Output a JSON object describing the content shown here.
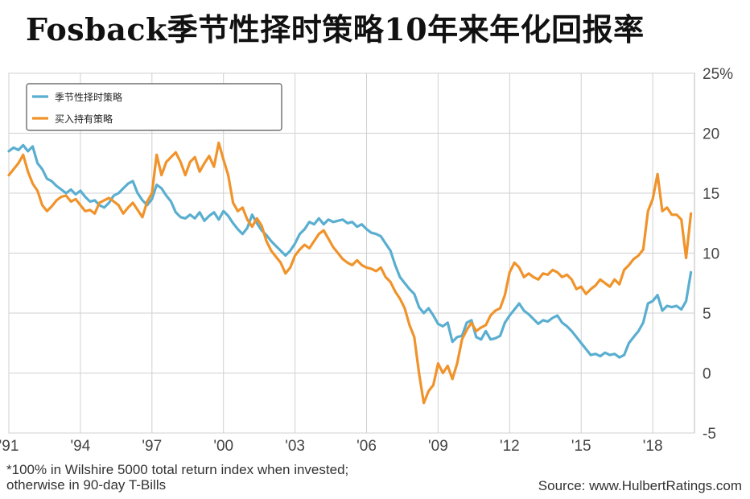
{
  "title": "Fosback季节性择时策略10年来年化回报率",
  "footnote": {
    "line1": "*100% in Wilshire 5000 total return index when invested;",
    "line2": "otherwise in 90-day T-Bills"
  },
  "source": "Source: www.HulbertRatings.com",
  "colors": {
    "seasonal": "#5aaed0",
    "buyhold": "#f0932b",
    "grid": "#d0d0d0"
  },
  "chart_data": {
    "type": "line",
    "title": "Fosback季节性择时策略10年来年化回报率",
    "xlabel": "",
    "ylabel": "",
    "xlim": [
      1991.0,
      2019.75
    ],
    "ylim": [
      -5,
      25
    ],
    "grid": true,
    "legend_position": "top-left",
    "x_ticks": [
      {
        "value": 1991,
        "label": "'91"
      },
      {
        "value": 1994,
        "label": "'94"
      },
      {
        "value": 1997,
        "label": "'97"
      },
      {
        "value": 2000,
        "label": "'00"
      },
      {
        "value": 2003,
        "label": "'03"
      },
      {
        "value": 2006,
        "label": "'06"
      },
      {
        "value": 2009,
        "label": "'09"
      },
      {
        "value": 2012,
        "label": "'12"
      },
      {
        "value": 2015,
        "label": "'15"
      },
      {
        "value": 2018,
        "label": "'18"
      }
    ],
    "y_ticks": [
      {
        "value": 25,
        "label": "25%"
      },
      {
        "value": 20,
        "label": "20"
      },
      {
        "value": 15,
        "label": "15"
      },
      {
        "value": 10,
        "label": "10"
      },
      {
        "value": 5,
        "label": "5"
      },
      {
        "value": 0,
        "label": "0"
      },
      {
        "value": -5,
        "label": "-5"
      }
    ],
    "series": [
      {
        "name": "季节性择时策略",
        "color": "#5aaed0",
        "points": [
          [
            1991.0,
            18.5
          ],
          [
            1991.2,
            18.8
          ],
          [
            1991.4,
            18.6
          ],
          [
            1991.6,
            19.0
          ],
          [
            1991.8,
            18.5
          ],
          [
            1992.0,
            18.9
          ],
          [
            1992.2,
            17.5
          ],
          [
            1992.4,
            17.0
          ],
          [
            1992.6,
            16.2
          ],
          [
            1992.8,
            16.0
          ],
          [
            1993.0,
            15.6
          ],
          [
            1993.2,
            15.3
          ],
          [
            1993.4,
            15.0
          ],
          [
            1993.6,
            15.3
          ],
          [
            1993.8,
            14.9
          ],
          [
            1994.0,
            15.2
          ],
          [
            1994.2,
            14.7
          ],
          [
            1994.4,
            14.3
          ],
          [
            1994.6,
            14.4
          ],
          [
            1994.8,
            14.0
          ],
          [
            1995.0,
            13.8
          ],
          [
            1995.2,
            14.2
          ],
          [
            1995.4,
            14.8
          ],
          [
            1995.6,
            15.0
          ],
          [
            1995.8,
            15.4
          ],
          [
            1996.0,
            15.8
          ],
          [
            1996.2,
            16.0
          ],
          [
            1996.4,
            15.0
          ],
          [
            1996.6,
            14.4
          ],
          [
            1996.8,
            14.0
          ],
          [
            1997.0,
            14.5
          ],
          [
            1997.2,
            15.7
          ],
          [
            1997.4,
            15.4
          ],
          [
            1997.6,
            14.8
          ],
          [
            1997.8,
            14.3
          ],
          [
            1998.0,
            13.4
          ],
          [
            1998.2,
            13.0
          ],
          [
            1998.4,
            12.9
          ],
          [
            1998.6,
            13.2
          ],
          [
            1998.8,
            12.9
          ],
          [
            1999.0,
            13.4
          ],
          [
            1999.2,
            12.7
          ],
          [
            1999.4,
            13.1
          ],
          [
            1999.6,
            13.4
          ],
          [
            1999.8,
            12.8
          ],
          [
            2000.0,
            13.5
          ],
          [
            2000.2,
            13.1
          ],
          [
            2000.4,
            12.5
          ],
          [
            2000.6,
            12.0
          ],
          [
            2000.8,
            11.6
          ],
          [
            2001.0,
            12.1
          ],
          [
            2001.2,
            13.2
          ],
          [
            2001.4,
            12.5
          ],
          [
            2001.6,
            11.9
          ],
          [
            2001.8,
            11.5
          ],
          [
            2002.0,
            11.0
          ],
          [
            2002.2,
            10.6
          ],
          [
            2002.4,
            10.2
          ],
          [
            2002.6,
            9.8
          ],
          [
            2002.8,
            10.2
          ],
          [
            2003.0,
            10.8
          ],
          [
            2003.2,
            11.6
          ],
          [
            2003.4,
            12.0
          ],
          [
            2003.6,
            12.6
          ],
          [
            2003.8,
            12.4
          ],
          [
            2004.0,
            12.9
          ],
          [
            2004.2,
            12.4
          ],
          [
            2004.4,
            12.8
          ],
          [
            2004.6,
            12.6
          ],
          [
            2004.8,
            12.7
          ],
          [
            2005.0,
            12.8
          ],
          [
            2005.2,
            12.5
          ],
          [
            2005.4,
            12.6
          ],
          [
            2005.6,
            12.2
          ],
          [
            2005.8,
            12.4
          ],
          [
            2006.0,
            12.0
          ],
          [
            2006.2,
            11.7
          ],
          [
            2006.4,
            11.6
          ],
          [
            2006.6,
            11.4
          ],
          [
            2006.8,
            10.8
          ],
          [
            2007.0,
            10.2
          ],
          [
            2007.2,
            9.0
          ],
          [
            2007.4,
            8.0
          ],
          [
            2007.6,
            7.5
          ],
          [
            2007.8,
            7.0
          ],
          [
            2008.0,
            6.6
          ],
          [
            2008.2,
            5.5
          ],
          [
            2008.4,
            5.0
          ],
          [
            2008.6,
            5.4
          ],
          [
            2008.8,
            4.8
          ],
          [
            2009.0,
            4.1
          ],
          [
            2009.2,
            3.9
          ],
          [
            2009.4,
            4.2
          ],
          [
            2009.6,
            2.6
          ],
          [
            2009.8,
            3.0
          ],
          [
            2010.0,
            3.1
          ],
          [
            2010.2,
            4.2
          ],
          [
            2010.4,
            4.4
          ],
          [
            2010.6,
            3.0
          ],
          [
            2010.8,
            2.8
          ],
          [
            2011.0,
            3.5
          ],
          [
            2011.2,
            2.8
          ],
          [
            2011.4,
            2.9
          ],
          [
            2011.6,
            3.1
          ],
          [
            2011.8,
            4.2
          ],
          [
            2012.0,
            4.8
          ],
          [
            2012.2,
            5.3
          ],
          [
            2012.4,
            5.8
          ],
          [
            2012.6,
            5.2
          ],
          [
            2012.8,
            4.9
          ],
          [
            2013.0,
            4.5
          ],
          [
            2013.2,
            4.1
          ],
          [
            2013.4,
            4.4
          ],
          [
            2013.6,
            4.3
          ],
          [
            2013.8,
            4.6
          ],
          [
            2014.0,
            4.8
          ],
          [
            2014.2,
            4.2
          ],
          [
            2014.4,
            3.9
          ],
          [
            2014.6,
            3.5
          ],
          [
            2014.8,
            3.0
          ],
          [
            2015.0,
            2.5
          ],
          [
            2015.2,
            2.0
          ],
          [
            2015.4,
            1.5
          ],
          [
            2015.6,
            1.6
          ],
          [
            2015.8,
            1.4
          ],
          [
            2016.0,
            1.7
          ],
          [
            2016.2,
            1.5
          ],
          [
            2016.4,
            1.6
          ],
          [
            2016.6,
            1.3
          ],
          [
            2016.8,
            1.5
          ],
          [
            2017.0,
            2.5
          ],
          [
            2017.2,
            3.0
          ],
          [
            2017.4,
            3.5
          ],
          [
            2017.6,
            4.2
          ],
          [
            2017.8,
            5.8
          ],
          [
            2018.0,
            6.0
          ],
          [
            2018.2,
            6.5
          ],
          [
            2018.4,
            5.2
          ],
          [
            2018.6,
            5.6
          ],
          [
            2018.8,
            5.5
          ],
          [
            2019.0,
            5.6
          ],
          [
            2019.2,
            5.3
          ],
          [
            2019.4,
            6.0
          ],
          [
            2019.6,
            8.4
          ]
        ]
      },
      {
        "name": "买入持有策略",
        "color": "#f0932b",
        "points": [
          [
            1991.0,
            16.5
          ],
          [
            1991.2,
            17.0
          ],
          [
            1991.4,
            17.5
          ],
          [
            1991.6,
            18.2
          ],
          [
            1991.8,
            16.8
          ],
          [
            1992.0,
            15.8
          ],
          [
            1992.2,
            15.2
          ],
          [
            1992.4,
            14.0
          ],
          [
            1992.6,
            13.5
          ],
          [
            1992.8,
            13.9
          ],
          [
            1993.0,
            14.4
          ],
          [
            1993.2,
            14.7
          ],
          [
            1993.4,
            14.8
          ],
          [
            1993.6,
            14.3
          ],
          [
            1993.8,
            14.5
          ],
          [
            1994.0,
            14.0
          ],
          [
            1994.2,
            13.5
          ],
          [
            1994.4,
            13.6
          ],
          [
            1994.6,
            13.3
          ],
          [
            1994.8,
            14.2
          ],
          [
            1995.0,
            14.4
          ],
          [
            1995.2,
            14.6
          ],
          [
            1995.4,
            14.3
          ],
          [
            1995.6,
            14.0
          ],
          [
            1995.8,
            13.3
          ],
          [
            1996.0,
            13.8
          ],
          [
            1996.2,
            14.2
          ],
          [
            1996.4,
            13.6
          ],
          [
            1996.6,
            13.0
          ],
          [
            1996.8,
            14.3
          ],
          [
            1997.0,
            15.0
          ],
          [
            1997.2,
            18.2
          ],
          [
            1997.4,
            16.5
          ],
          [
            1997.6,
            17.6
          ],
          [
            1997.8,
            18.0
          ],
          [
            1998.0,
            18.4
          ],
          [
            1998.2,
            17.6
          ],
          [
            1998.4,
            16.5
          ],
          [
            1998.6,
            17.6
          ],
          [
            1998.8,
            18.0
          ],
          [
            1999.0,
            16.8
          ],
          [
            1999.2,
            17.5
          ],
          [
            1999.4,
            18.1
          ],
          [
            1999.6,
            17.2
          ],
          [
            1999.8,
            19.2
          ],
          [
            2000.0,
            17.8
          ],
          [
            2000.2,
            16.5
          ],
          [
            2000.4,
            14.2
          ],
          [
            2000.6,
            13.5
          ],
          [
            2000.8,
            13.8
          ],
          [
            2001.0,
            12.8
          ],
          [
            2001.2,
            12.2
          ],
          [
            2001.4,
            12.9
          ],
          [
            2001.6,
            12.3
          ],
          [
            2001.8,
            11.0
          ],
          [
            2002.0,
            10.2
          ],
          [
            2002.2,
            9.7
          ],
          [
            2002.4,
            9.2
          ],
          [
            2002.6,
            8.3
          ],
          [
            2002.8,
            8.8
          ],
          [
            2003.0,
            9.8
          ],
          [
            2003.2,
            10.3
          ],
          [
            2003.4,
            10.7
          ],
          [
            2003.6,
            10.4
          ],
          [
            2003.8,
            11.0
          ],
          [
            2004.0,
            11.6
          ],
          [
            2004.2,
            11.9
          ],
          [
            2004.4,
            11.2
          ],
          [
            2004.6,
            10.5
          ],
          [
            2004.8,
            10.0
          ],
          [
            2005.0,
            9.5
          ],
          [
            2005.2,
            9.2
          ],
          [
            2005.4,
            9.0
          ],
          [
            2005.6,
            9.4
          ],
          [
            2005.8,
            9.0
          ],
          [
            2006.0,
            8.8
          ],
          [
            2006.2,
            8.7
          ],
          [
            2006.4,
            8.5
          ],
          [
            2006.6,
            8.8
          ],
          [
            2006.8,
            8.0
          ],
          [
            2007.0,
            7.6
          ],
          [
            2007.2,
            6.8
          ],
          [
            2007.4,
            6.2
          ],
          [
            2007.6,
            5.4
          ],
          [
            2007.8,
            4.0
          ],
          [
            2008.0,
            3.0
          ],
          [
            2008.2,
            0.0
          ],
          [
            2008.4,
            -2.5
          ],
          [
            2008.6,
            -1.5
          ],
          [
            2008.8,
            -1.0
          ],
          [
            2009.0,
            0.8
          ],
          [
            2009.2,
            0.0
          ],
          [
            2009.4,
            0.6
          ],
          [
            2009.6,
            -0.5
          ],
          [
            2009.8,
            0.8
          ],
          [
            2010.0,
            2.8
          ],
          [
            2010.2,
            3.6
          ],
          [
            2010.4,
            4.2
          ],
          [
            2010.6,
            3.5
          ],
          [
            2010.8,
            3.8
          ],
          [
            2011.0,
            4.0
          ],
          [
            2011.2,
            4.8
          ],
          [
            2011.4,
            5.2
          ],
          [
            2011.6,
            5.4
          ],
          [
            2011.8,
            6.5
          ],
          [
            2012.0,
            8.4
          ],
          [
            2012.2,
            9.2
          ],
          [
            2012.4,
            8.8
          ],
          [
            2012.6,
            8.0
          ],
          [
            2012.8,
            8.3
          ],
          [
            2013.0,
            8.0
          ],
          [
            2013.2,
            7.8
          ],
          [
            2013.4,
            8.3
          ],
          [
            2013.6,
            8.2
          ],
          [
            2013.8,
            8.6
          ],
          [
            2014.0,
            8.4
          ],
          [
            2014.2,
            8.0
          ],
          [
            2014.4,
            8.2
          ],
          [
            2014.6,
            7.8
          ],
          [
            2014.8,
            7.0
          ],
          [
            2015.0,
            7.2
          ],
          [
            2015.2,
            6.6
          ],
          [
            2015.4,
            7.0
          ],
          [
            2015.6,
            7.3
          ],
          [
            2015.8,
            7.8
          ],
          [
            2016.0,
            7.5
          ],
          [
            2016.2,
            7.2
          ],
          [
            2016.4,
            7.8
          ],
          [
            2016.6,
            7.4
          ],
          [
            2016.8,
            8.6
          ],
          [
            2017.0,
            9.0
          ],
          [
            2017.2,
            9.5
          ],
          [
            2017.4,
            9.8
          ],
          [
            2017.6,
            10.3
          ],
          [
            2017.8,
            13.5
          ],
          [
            2018.0,
            14.5
          ],
          [
            2018.2,
            16.6
          ],
          [
            2018.4,
            13.5
          ],
          [
            2018.6,
            13.8
          ],
          [
            2018.8,
            13.2
          ],
          [
            2019.0,
            13.2
          ],
          [
            2019.2,
            12.8
          ],
          [
            2019.4,
            9.6
          ],
          [
            2019.6,
            13.3
          ]
        ]
      }
    ]
  }
}
